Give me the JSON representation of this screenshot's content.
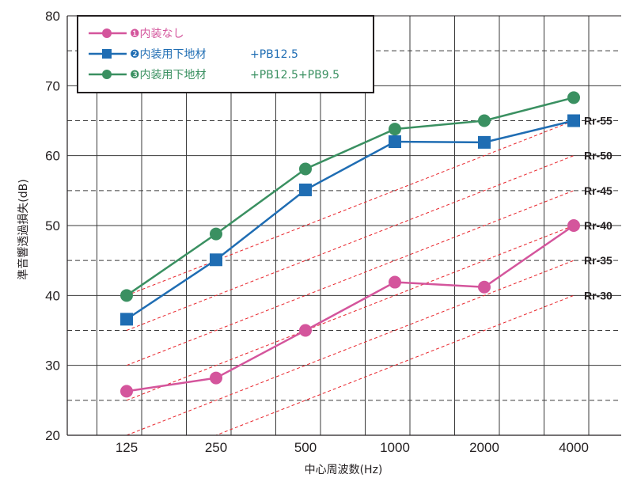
{
  "chart_data": {
    "type": "line",
    "title": "",
    "xlabel": "中心周波数(Hz)",
    "ylabel": "準音響透過損失(dB)",
    "categories": [
      "125",
      "250",
      "500",
      "1000",
      "2000",
      "4000"
    ],
    "yticks": [
      "20",
      "30",
      "40",
      "50",
      "60",
      "70",
      "80"
    ],
    "ylim": [
      20,
      80
    ],
    "grid": true,
    "legend_position": "top-left",
    "series": [
      {
        "marker_label": "❶",
        "name": "内装なし",
        "suffix": "",
        "marker": "circle",
        "color": "#d4559c",
        "values": [
          26.3,
          28.2,
          35.0,
          41.9,
          41.2,
          50.0
        ]
      },
      {
        "marker_label": "❷",
        "name": "内装用下地材",
        "suffix": "+PB12.5",
        "marker": "square",
        "color": "#1f6db3",
        "values": [
          36.6,
          45.1,
          55.1,
          62.0,
          61.9,
          65.0
        ]
      },
      {
        "marker_label": "❸",
        "name": "内装用下地材",
        "suffix": "+PB12.5+PB9.5",
        "marker": "circle",
        "color": "#3a9061",
        "values": [
          40.0,
          48.8,
          58.1,
          63.8,
          65.0,
          68.3
        ]
      }
    ],
    "reference_curves": [
      {
        "label": "Rr-55",
        "values": [
          40,
          45,
          50,
          55,
          60,
          65
        ]
      },
      {
        "label": "Rr-50",
        "values": [
          35,
          40,
          45,
          50,
          55,
          60
        ]
      },
      {
        "label": "Rr-45",
        "values": [
          30,
          35,
          40,
          45,
          50,
          55
        ]
      },
      {
        "label": "Rr-40",
        "values": [
          25,
          30,
          35,
          40,
          45,
          50
        ]
      },
      {
        "label": "Rr-35",
        "values": [
          20,
          25,
          30,
          35,
          40,
          45
        ]
      },
      {
        "label": "Rr-30",
        "values": [
          15,
          20,
          25,
          30,
          35,
          40
        ]
      }
    ],
    "reference_color": "#e8242b"
  }
}
